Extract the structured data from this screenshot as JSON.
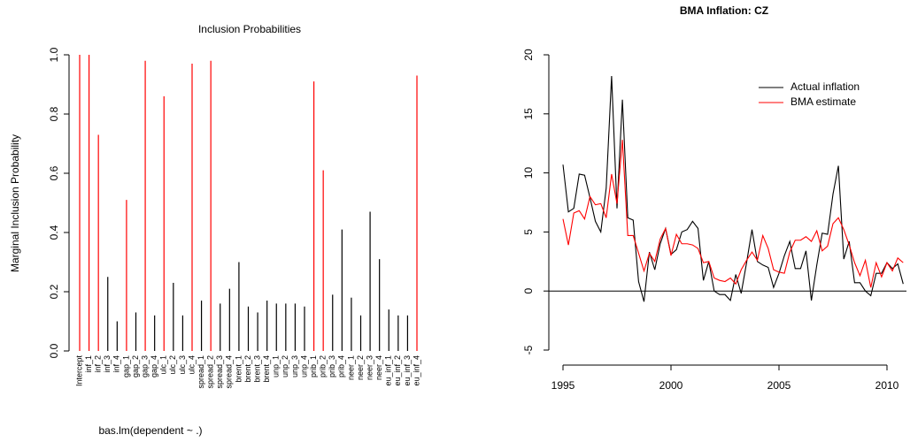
{
  "chart_data": [
    {
      "type": "bar",
      "title": "Inclusion Probabilities",
      "xlabel": "bas.lm(dependent ~ .)",
      "ylabel": "Marginal Inclusion Probability",
      "categories": [
        "Intercept",
        "inf_1",
        "inf_2",
        "inf_3",
        "inf_4",
        "gap_1",
        "gap_2",
        "gap_3",
        "gap_4",
        "ulc_1",
        "ulc_2",
        "ulc_3",
        "ulc_4",
        "spread_1",
        "spread_2",
        "spread_3",
        "spread_4",
        "brent_1",
        "brent_2",
        "brent_3",
        "brent_4",
        "unp_1",
        "unp_2",
        "unp_3",
        "unp_4",
        "prib_1",
        "prib_2",
        "prib_3",
        "prib_4",
        "neer_1",
        "neer_2",
        "neer_3",
        "neer_4",
        "eu_inf_1",
        "eu_inf_2",
        "eu_inf_3",
        "eu_inf_4"
      ],
      "values": [
        1.0,
        1.0,
        0.73,
        0.25,
        0.1,
        0.51,
        0.13,
        0.98,
        0.12,
        0.86,
        0.23,
        0.12,
        0.97,
        0.17,
        0.98,
        0.16,
        0.21,
        0.3,
        0.15,
        0.13,
        0.17,
        0.16,
        0.16,
        0.16,
        0.15,
        0.91,
        0.61,
        0.19,
        0.41,
        0.18,
        0.12,
        0.47,
        0.31,
        0.14,
        0.12,
        0.12,
        0.93
      ],
      "colors": [
        "#ff0000",
        "#ff0000",
        "#ff0000",
        "#000000",
        "#000000",
        "#ff0000",
        "#000000",
        "#ff0000",
        "#000000",
        "#ff0000",
        "#000000",
        "#000000",
        "#ff0000",
        "#000000",
        "#ff0000",
        "#000000",
        "#000000",
        "#000000",
        "#000000",
        "#000000",
        "#000000",
        "#000000",
        "#000000",
        "#000000",
        "#000000",
        "#ff0000",
        "#ff0000",
        "#000000",
        "#000000",
        "#000000",
        "#000000",
        "#000000",
        "#000000",
        "#000000",
        "#000000",
        "#000000",
        "#ff0000"
      ],
      "ylim": [
        0,
        1
      ],
      "yticks": [
        {
          "value": 0,
          "label": "0.0"
        },
        0.2,
        0.4,
        0.6,
        0.8,
        {
          "value": 1,
          "label": "1.0"
        }
      ]
    },
    {
      "type": "line",
      "title": "BMA Inflation: CZ",
      "x": [
        1995,
        1995.25,
        1995.5,
        1995.75,
        1996,
        1996.25,
        1996.5,
        1996.75,
        1997,
        1997.25,
        1997.5,
        1997.75,
        1998,
        1998.25,
        1998.5,
        1998.75,
        1999,
        1999.25,
        1999.5,
        1999.75,
        2000,
        2000.25,
        2000.5,
        2000.75,
        2001,
        2001.25,
        2001.5,
        2001.75,
        2002,
        2002.25,
        2002.5,
        2002.75,
        2003,
        2003.25,
        2003.5,
        2003.75,
        2004,
        2004.25,
        2004.5,
        2004.75,
        2005,
        2005.25,
        2005.5,
        2005.75,
        2006,
        2006.25,
        2006.5,
        2006.75,
        2007,
        2007.25,
        2007.5,
        2007.75,
        2008,
        2008.25,
        2008.5,
        2008.75,
        2009,
        2009.25,
        2009.5,
        2009.75,
        2010,
        2010.25,
        2010.5,
        2010.75
      ],
      "series": [
        {
          "name": "Actual inflation",
          "color": "#000000",
          "values": [
            10.7,
            6.7,
            7.0,
            9.9,
            9.8,
            7.9,
            5.9,
            5.0,
            8.7,
            18.2,
            7.0,
            16.2,
            6.2,
            6.0,
            0.8,
            -0.9,
            3.3,
            1.8,
            4.0,
            5.3,
            3.1,
            3.5,
            5.0,
            5.2,
            5.9,
            5.3,
            0.9,
            2.5,
            0.0,
            -0.3,
            -0.3,
            -0.8,
            1.4,
            -0.2,
            2.4,
            5.2,
            2.5,
            2.2,
            2.0,
            0.3,
            1.5,
            3.0,
            4.2,
            1.9,
            1.9,
            3.4,
            -0.8,
            2.2,
            4.9,
            4.8,
            8.2,
            10.6,
            2.7,
            4.2,
            0.7,
            0.7,
            0.0,
            -0.4,
            1.5,
            1.5,
            2.4,
            1.9,
            2.3,
            0.6
          ]
        },
        {
          "name": "BMA estimate",
          "color": "#ff0000",
          "values": [
            6.1,
            3.9,
            6.6,
            6.8,
            6.1,
            8.0,
            7.3,
            7.4,
            6.2,
            9.9,
            7.4,
            12.8,
            4.7,
            4.7,
            3.2,
            1.7,
            3.2,
            2.5,
            4.4,
            5.3,
            3.0,
            4.8,
            4.0,
            4.0,
            3.9,
            3.6,
            2.4,
            2.5,
            1.1,
            0.9,
            0.8,
            1.1,
            0.6,
            1.8,
            2.6,
            3.3,
            2.6,
            4.7,
            3.6,
            1.8,
            1.6,
            1.5,
            3.3,
            4.3,
            4.3,
            4.6,
            4.2,
            5.1,
            3.4,
            3.8,
            5.7,
            6.2,
            5.2,
            3.9,
            2.4,
            1.3,
            2.6,
            0.3,
            2.4,
            1.2,
            2.4,
            1.7,
            2.8,
            2.4
          ]
        }
      ],
      "xlim": [
        1995,
        2010
      ],
      "xticks": [
        1995,
        2000,
        2005,
        2010
      ],
      "ylim": [
        -5,
        20
      ],
      "yticks": [
        -5,
        0,
        5,
        10,
        15,
        20
      ],
      "hline": 0,
      "legend": "top-right"
    }
  ]
}
